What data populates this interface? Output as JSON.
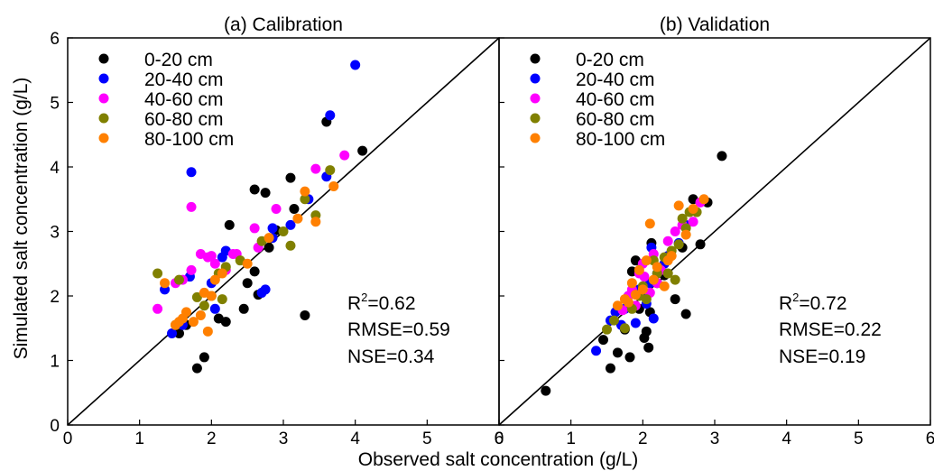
{
  "figure": {
    "xlabel": "Observed salt concentration (g/L)",
    "ylabel": "Simulated salt concentration (g/L)"
  },
  "chart_data": [
    {
      "type": "scatter",
      "title": "(a) Calibration",
      "xlim": [
        0,
        6
      ],
      "ylim": [
        0,
        6
      ],
      "xticks": [
        "0",
        "1",
        "2",
        "3",
        "4",
        "5",
        "6"
      ],
      "yticks": [
        "0",
        "1",
        "2",
        "3",
        "4",
        "5",
        "6"
      ],
      "reference_line": "1:1",
      "legend_position": "top-left",
      "stats": {
        "r2_label": "R",
        "r2_sup": "2",
        "r2_value": "=0.62",
        "rmse": "RMSE=0.59",
        "nse": "NSE=0.34"
      },
      "series": [
        {
          "name": "0-20 cm",
          "color": "#000000",
          "points": [
            [
              1.55,
              1.42
            ],
            [
              1.65,
              1.55
            ],
            [
              1.8,
              0.88
            ],
            [
              1.9,
              1.05
            ],
            [
              2.1,
              1.65
            ],
            [
              2.2,
              1.6
            ],
            [
              2.25,
              3.1
            ],
            [
              2.45,
              1.8
            ],
            [
              2.5,
              2.2
            ],
            [
              2.6,
              3.65
            ],
            [
              2.65,
              2.02
            ],
            [
              2.6,
              2.38
            ],
            [
              2.75,
              3.6
            ],
            [
              2.8,
              2.75
            ],
            [
              2.9,
              3.02
            ],
            [
              3.1,
              3.83
            ],
            [
              3.15,
              3.35
            ],
            [
              3.3,
              1.7
            ],
            [
              3.6,
              4.7
            ],
            [
              4.1,
              4.25
            ]
          ]
        },
        {
          "name": "20-40 cm",
          "color": "#0000ff",
          "points": [
            [
              1.35,
              2.1
            ],
            [
              1.45,
              1.42
            ],
            [
              1.6,
              1.55
            ],
            [
              1.7,
              2.3
            ],
            [
              1.72,
              3.92
            ],
            [
              2.0,
              2.2
            ],
            [
              2.05,
              1.8
            ],
            [
              2.15,
              2.6
            ],
            [
              2.2,
              2.7
            ],
            [
              2.7,
              2.05
            ],
            [
              2.75,
              2.1
            ],
            [
              2.85,
              2.9
            ],
            [
              2.85,
              3.05
            ],
            [
              3.1,
              3.1
            ],
            [
              3.35,
              3.5
            ],
            [
              3.6,
              3.85
            ],
            [
              3.65,
              4.8
            ],
            [
              4.0,
              5.58
            ]
          ]
        },
        {
          "name": "40-60 cm",
          "color": "#ff00ff",
          "points": [
            [
              1.25,
              1.8
            ],
            [
              1.5,
              2.2
            ],
            [
              1.6,
              2.25
            ],
            [
              1.72,
              2.4
            ],
            [
              1.72,
              3.38
            ],
            [
              1.85,
              2.65
            ],
            [
              1.95,
              2.6
            ],
            [
              2.0,
              2.62
            ],
            [
              2.05,
              2.5
            ],
            [
              2.2,
              2.4
            ],
            [
              2.3,
              2.65
            ],
            [
              2.35,
              2.65
            ],
            [
              2.6,
              3.05
            ],
            [
              2.65,
              2.75
            ],
            [
              2.9,
              3.35
            ],
            [
              3.45,
              3.97
            ],
            [
              3.85,
              4.18
            ]
          ]
        },
        {
          "name": "60-80 cm",
          "color": "#808000",
          "points": [
            [
              1.25,
              2.35
            ],
            [
              1.5,
              1.55
            ],
            [
              1.55,
              2.25
            ],
            [
              1.8,
              1.98
            ],
            [
              1.9,
              1.85
            ],
            [
              2.0,
              2.0
            ],
            [
              2.1,
              2.35
            ],
            [
              2.15,
              1.95
            ],
            [
              2.2,
              2.45
            ],
            [
              2.4,
              2.55
            ],
            [
              2.7,
              2.85
            ],
            [
              3.0,
              3.0
            ],
            [
              3.1,
              2.78
            ],
            [
              3.3,
              3.5
            ],
            [
              3.45,
              3.25
            ],
            [
              3.65,
              3.95
            ]
          ]
        },
        {
          "name": "80-100 cm",
          "color": "#ff8000",
          "points": [
            [
              1.35,
              2.2
            ],
            [
              1.5,
              1.55
            ],
            [
              1.55,
              1.6
            ],
            [
              1.6,
              1.65
            ],
            [
              1.65,
              1.75
            ],
            [
              1.75,
              1.6
            ],
            [
              1.85,
              1.7
            ],
            [
              1.9,
              2.05
            ],
            [
              1.95,
              1.45
            ],
            [
              2.0,
              2.0
            ],
            [
              2.05,
              2.25
            ],
            [
              2.15,
              2.35
            ],
            [
              2.5,
              2.5
            ],
            [
              2.8,
              2.9
            ],
            [
              3.2,
              3.2
            ],
            [
              3.3,
              3.62
            ],
            [
              3.45,
              3.15
            ],
            [
              3.7,
              3.7
            ]
          ]
        }
      ]
    },
    {
      "type": "scatter",
      "title": "(b) Validation",
      "xlim": [
        0,
        6
      ],
      "ylim": [
        0,
        6
      ],
      "xticks": [
        "0",
        "1",
        "2",
        "3",
        "4",
        "5",
        "6"
      ],
      "yticks": [
        "0",
        "1",
        "2",
        "3",
        "4",
        "5",
        "6"
      ],
      "reference_line": "1:1",
      "legend_position": "top-left",
      "stats": {
        "r2_label": "R",
        "r2_sup": "2",
        "r2_value": "=0.72",
        "rmse": "RMSE=0.22",
        "nse": "NSE=0.19"
      },
      "series": [
        {
          "name": "0-20 cm",
          "color": "#000000",
          "points": [
            [
              0.65,
              0.53
            ],
            [
              1.45,
              1.32
            ],
            [
              1.55,
              0.88
            ],
            [
              1.65,
              1.12
            ],
            [
              1.75,
              1.48
            ],
            [
              1.82,
              1.05
            ],
            [
              1.85,
              2.38
            ],
            [
              1.9,
              2.55
            ],
            [
              1.95,
              1.8
            ],
            [
              2.02,
              1.35
            ],
            [
              2.05,
              1.45
            ],
            [
              2.08,
              1.2
            ],
            [
              2.1,
              1.75
            ],
            [
              2.12,
              2.82
            ],
            [
              2.2,
              2.2
            ],
            [
              2.3,
              2.32
            ],
            [
              2.45,
              1.95
            ],
            [
              2.55,
              2.75
            ],
            [
              2.6,
              1.72
            ],
            [
              2.7,
              3.5
            ],
            [
              2.8,
              2.8
            ],
            [
              2.9,
              3.45
            ],
            [
              3.1,
              4.17
            ]
          ]
        },
        {
          "name": "20-40 cm",
          "color": "#0000ff",
          "points": [
            [
              1.35,
              1.15
            ],
            [
              1.55,
              1.62
            ],
            [
              1.62,
              1.75
            ],
            [
              1.7,
              1.55
            ],
            [
              1.75,
              1.8
            ],
            [
              1.8,
              2.0
            ],
            [
              1.9,
              1.58
            ],
            [
              1.95,
              2.1
            ],
            [
              2.0,
              2.02
            ],
            [
              2.05,
              1.88
            ],
            [
              2.1,
              2.2
            ],
            [
              2.12,
              2.75
            ],
            [
              2.15,
              1.65
            ],
            [
              2.2,
              2.35
            ],
            [
              2.3,
              2.5
            ],
            [
              2.35,
              2.62
            ],
            [
              2.5,
              2.82
            ],
            [
              2.6,
              3.1
            ]
          ]
        },
        {
          "name": "40-60 cm",
          "color": "#ff00ff",
          "points": [
            [
              1.72,
              1.78
            ],
            [
              1.8,
              2.0
            ],
            [
              1.85,
              2.1
            ],
            [
              1.9,
              1.85
            ],
            [
              1.95,
              2.35
            ],
            [
              2.0,
              2.5
            ],
            [
              2.02,
              2.3
            ],
            [
              2.1,
              2.05
            ],
            [
              2.15,
              2.65
            ],
            [
              2.2,
              2.2
            ],
            [
              2.25,
              2.4
            ],
            [
              2.35,
              2.85
            ],
            [
              2.45,
              3.0
            ],
            [
              2.55,
              3.1
            ],
            [
              2.7,
              3.15
            ],
            [
              2.8,
              3.45
            ]
          ]
        },
        {
          "name": "60-80 cm",
          "color": "#808000",
          "points": [
            [
              1.5,
              1.48
            ],
            [
              1.6,
              1.62
            ],
            [
              1.75,
              1.5
            ],
            [
              1.85,
              1.8
            ],
            [
              1.95,
              2.0
            ],
            [
              2.0,
              2.15
            ],
            [
              2.05,
              1.95
            ],
            [
              2.15,
              2.55
            ],
            [
              2.2,
              2.35
            ],
            [
              2.3,
              2.6
            ],
            [
              2.35,
              2.35
            ],
            [
              2.4,
              2.7
            ],
            [
              2.45,
              2.25
            ],
            [
              2.5,
              2.8
            ],
            [
              2.55,
              3.2
            ],
            [
              2.6,
              3.05
            ],
            [
              2.65,
              3.3
            ],
            [
              2.75,
              3.3
            ]
          ]
        },
        {
          "name": "80-100 cm",
          "color": "#ff8000",
          "points": [
            [
              1.65,
              1.85
            ],
            [
              1.75,
              1.95
            ],
            [
              1.8,
              1.9
            ],
            [
              1.85,
              2.2
            ],
            [
              1.9,
              2.02
            ],
            [
              1.95,
              2.4
            ],
            [
              2.0,
              2.1
            ],
            [
              2.05,
              2.55
            ],
            [
              2.1,
              3.12
            ],
            [
              2.15,
              2.25
            ],
            [
              2.2,
              2.45
            ],
            [
              2.3,
              2.15
            ],
            [
              2.35,
              2.55
            ],
            [
              2.4,
              2.62
            ],
            [
              2.5,
              3.4
            ],
            [
              2.6,
              2.95
            ],
            [
              2.7,
              3.35
            ],
            [
              2.85,
              3.5
            ]
          ]
        }
      ]
    }
  ]
}
